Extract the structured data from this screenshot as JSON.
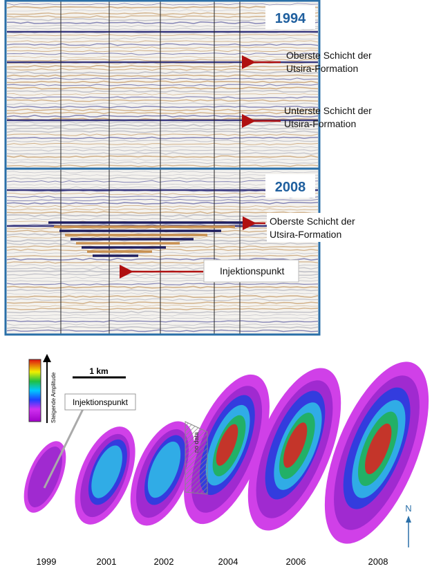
{
  "seismic_panels": [
    {
      "year": "1994",
      "labels": [
        {
          "lines": [
            "Oberste Schicht der",
            "Utsira-Formation"
          ]
        },
        {
          "lines": [
            "Unterste Schicht der",
            "Utsira-Formation"
          ]
        }
      ]
    },
    {
      "year": "2008",
      "labels": [
        {
          "lines": [
            "Oberste Schicht der",
            "Utsira-Formation"
          ]
        },
        {
          "lines": [
            "Injektionspunkt"
          ]
        }
      ]
    }
  ],
  "plume_maps": {
    "legend_label": "Steigende Amplitude",
    "scale_label": "1 km",
    "callout": "Injektionspunkt",
    "no_data": "no data",
    "north": "N",
    "years": [
      "1999",
      "2001",
      "2002",
      "2004",
      "2006",
      "2008"
    ]
  }
}
